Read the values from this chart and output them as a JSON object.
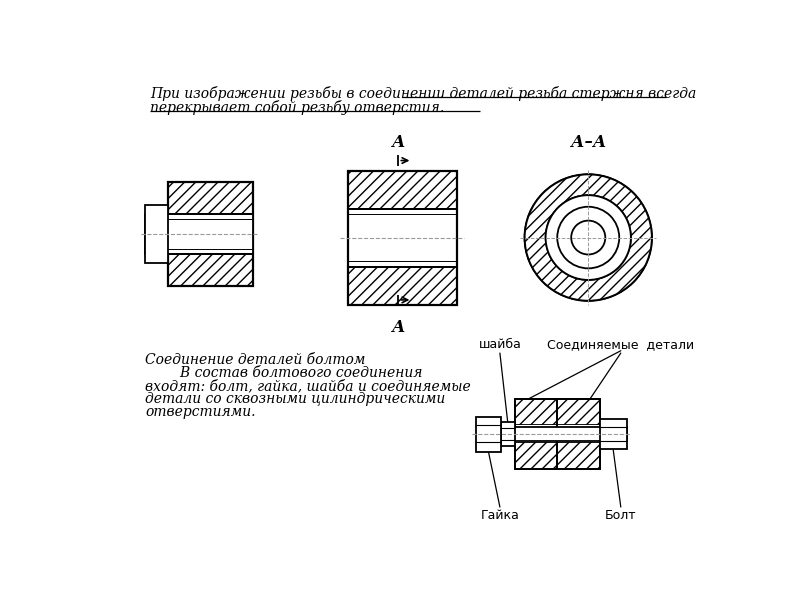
{
  "bg_color": "#ffffff",
  "line_color": "#000000",
  "dash_color": "#999999",
  "title_line1_plain": "При изображении резьбы в соединении деталей ",
  "title_line1_underlined": "резьба стержня всегда",
  "title_line2_underlined": "перекрывает собой резьбу отверстия",
  "title_line2_dot": ".",
  "section_label_top": "А",
  "section_label_bot": "А",
  "section_label_aa": "А–А",
  "bottom_title": "Соединение деталей болтом",
  "bottom_line1": "        В состав болтового соединения",
  "bottom_line2": "входят: болт, гайка, шайба и соединяемые",
  "bottom_line3": "детали со сквозными цилиндрическими",
  "bottom_line4": "отверстиями.",
  "label_shaiba": "шайба",
  "label_soedinyaemye": "Соединяемые  детали",
  "label_gaika": "Гайка",
  "label_bolt": "Болт"
}
